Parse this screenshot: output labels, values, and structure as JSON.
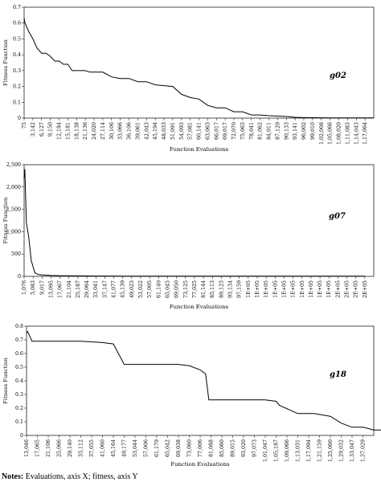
{
  "chart_data": [
    {
      "type": "line",
      "label": "g02",
      "xlabel": "Function Evaluations",
      "ylabel": "Fitness Function",
      "ylim": [
        0,
        0.7
      ],
      "yticks": [
        "0",
        "0.1",
        "0.2",
        "0.3",
        "0.4",
        "0.5",
        "0.6",
        "0.7"
      ],
      "xticks": [
        "75",
        "3,142",
        "6,127",
        "9,150",
        "12,184",
        "15,181",
        "18,138",
        "21,136",
        "24,020",
        "27,114",
        "30,106",
        "33,066",
        "36,106",
        "39,061",
        "42,043",
        "45,194",
        "48,033",
        "51,091",
        "54,093",
        "57,081",
        "60,141",
        "63,063",
        "66,017",
        "69,017",
        "72,070",
        "75,063",
        "78,041",
        "81,062",
        "84,011",
        "87,129",
        "90,133",
        "93,141",
        "96,002",
        "99,010",
        "1,02,008",
        "1,05,066",
        "1,08,020",
        "1,11,083",
        "1,14,043",
        "1,17,064"
      ],
      "x": [
        0,
        0.1,
        0.5,
        1,
        1.5,
        2,
        2.5,
        3,
        3.5,
        4,
        4.5,
        5,
        5.5,
        6,
        7,
        7.5,
        8,
        9,
        10,
        11,
        12,
        13,
        14,
        15,
        17,
        18,
        19,
        20,
        21,
        22,
        23,
        24,
        25,
        26,
        27,
        28,
        30,
        31,
        32,
        34,
        35,
        38,
        40
      ],
      "y": [
        0.63,
        0.6,
        0.55,
        0.5,
        0.44,
        0.41,
        0.41,
        0.39,
        0.36,
        0.36,
        0.34,
        0.34,
        0.3,
        0.3,
        0.3,
        0.29,
        0.29,
        0.29,
        0.26,
        0.25,
        0.25,
        0.23,
        0.23,
        0.21,
        0.2,
        0.15,
        0.13,
        0.12,
        0.08,
        0.065,
        0.065,
        0.04,
        0.04,
        0.02,
        0.02,
        0.015,
        0.01,
        0.005,
        0.003,
        0.002,
        0.001,
        0.001,
        0.001
      ],
      "grid": false
    },
    {
      "type": "line",
      "label": "g07",
      "xlabel": "Function Evaluations",
      "ylabel": "Fitness Function",
      "ylim": [
        0,
        2500
      ],
      "yticks": [
        "0",
        "500",
        "1,000",
        "1,500",
        "2,000",
        "2,500"
      ],
      "xticks": [
        "1,076",
        "5,083",
        "9,017",
        "13,095",
        "17,067",
        "21,104",
        "25,187",
        "29,064",
        "33,041",
        "37,147",
        "41,077",
        "45,139",
        "49,023",
        "53,022",
        "57,005",
        "61,140",
        "65,045",
        "69,050",
        "73,125",
        "77,025",
        "81,144",
        "85,113",
        "89,123",
        "93,134",
        "97,159",
        "1E+05",
        "1E+05",
        "1E+05",
        "1E+05",
        "1E+05",
        "1E+05",
        "1E+05",
        "1E+05",
        "1E+05",
        "1E+05",
        "2E+05",
        "2E+05",
        "2E+05",
        "2E+05"
      ],
      "x": [
        0,
        0.08,
        0.25,
        0.5,
        0.8,
        1.2,
        1.6,
        2,
        2.5,
        3,
        4,
        6,
        8,
        12,
        20,
        30,
        38
      ],
      "y": [
        2200,
        2400,
        1200,
        900,
        350,
        80,
        40,
        30,
        25,
        20,
        15,
        10,
        8,
        5,
        4,
        3,
        3
      ],
      "grid": false
    },
    {
      "type": "line",
      "label": "g18",
      "xlabel": "Function Evaluations",
      "ylabel": "Fitness Function",
      "ylim": [
        0,
        0.8
      ],
      "yticks": [
        "0",
        "0.1",
        "0.2",
        "0.3",
        "0.4",
        "0.5",
        "0.6",
        "0.7",
        "0.8"
      ],
      "xticks": [
        "13,046",
        "17,065",
        "21,106",
        "25,066",
        "29,140",
        "33,112",
        "37,055",
        "41,060",
        "45,164",
        "49,177",
        "53,044",
        "57,006",
        "61,179",
        "65,042",
        "69,038",
        "73,060",
        "77,006",
        "81,088",
        "85,060",
        "89,015",
        "93,020",
        "97,073",
        "1,01,047",
        "1,05,187",
        "1,09,066",
        "1,13,031",
        "1,17,094",
        "1,21,159",
        "1,25,060",
        "1,29,032",
        "1,33,047",
        "1,37,029"
      ],
      "x": [
        0,
        0.1,
        0.5,
        1,
        3,
        5,
        7,
        8,
        9,
        14,
        15,
        16,
        16.5,
        16.8,
        17.2,
        18,
        22,
        23,
        23.3,
        25,
        26,
        26.5,
        28,
        29,
        30,
        31,
        32,
        33,
        34,
        35,
        36,
        37,
        39,
        41,
        43
      ],
      "y": [
        0.75,
        0.76,
        0.69,
        0.69,
        0.69,
        0.69,
        0.68,
        0.67,
        0.52,
        0.52,
        0.51,
        0.48,
        0.45,
        0.26,
        0.26,
        0.26,
        0.26,
        0.25,
        0.22,
        0.16,
        0.16,
        0.16,
        0.14,
        0.09,
        0.06,
        0.06,
        0.04,
        0.04,
        0.03,
        0.02,
        0.015,
        0.01,
        0.005,
        0.002,
        0.001
      ],
      "grid": false
    }
  ],
  "notes": {
    "lead": "Notes:",
    "text": " Evaluations, axis X; fitness, axis Y"
  }
}
